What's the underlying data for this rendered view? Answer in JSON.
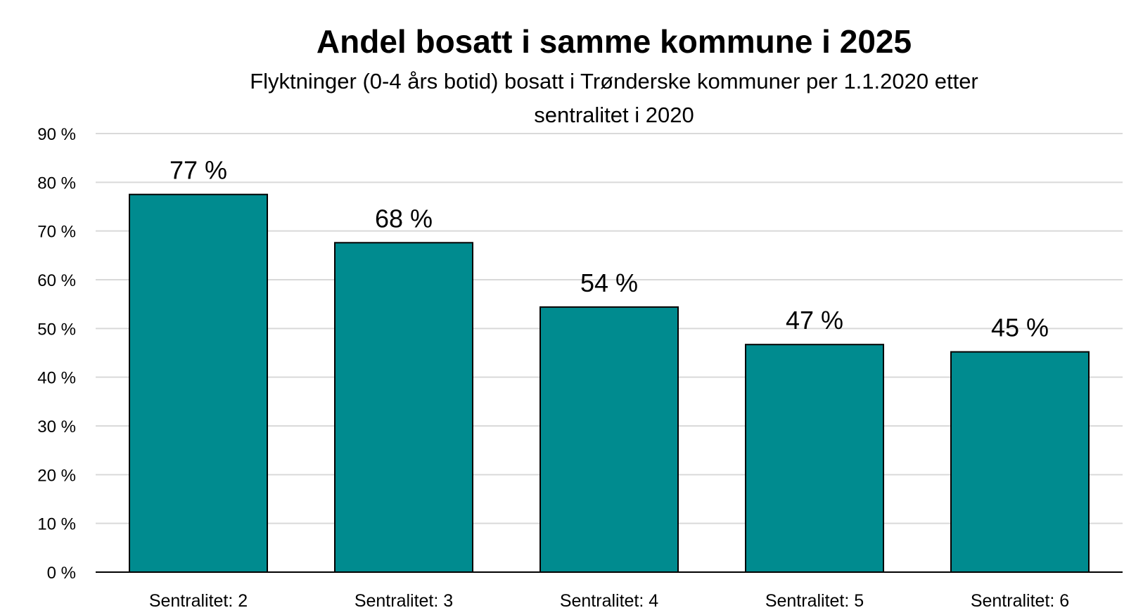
{
  "chart_data": {
    "type": "bar",
    "title": "Andel bosatt i samme kommune i 2025",
    "subtitle_lines": [
      "Flyktninger (0-4 års botid) bosatt i Trønderske kommuner per 1.1.2020 etter",
      "sentralitet i 2020"
    ],
    "xlabel": "",
    "ylabel": "",
    "categories": [
      "Sentralitet: 2",
      "Sentralitet: 3",
      "Sentralitet: 4",
      "Sentralitet: 5",
      "Sentralitet: 6"
    ],
    "values": [
      77.5,
      67.6,
      54.4,
      46.7,
      45.2
    ],
    "data_labels": [
      "77 %",
      "68 %",
      "54 %",
      "47 %",
      "45 %"
    ],
    "ylim": [
      0,
      90
    ],
    "yticks": [
      0,
      10,
      20,
      30,
      40,
      50,
      60,
      70,
      80,
      90
    ],
    "ytick_labels": [
      "0 %",
      "10 %",
      "20 %",
      "30 %",
      "40 %",
      "50 %",
      "60 %",
      "70 %",
      "80 %",
      "90 %"
    ],
    "grid": true,
    "legend": "none",
    "bar_color": "#008b8f"
  }
}
